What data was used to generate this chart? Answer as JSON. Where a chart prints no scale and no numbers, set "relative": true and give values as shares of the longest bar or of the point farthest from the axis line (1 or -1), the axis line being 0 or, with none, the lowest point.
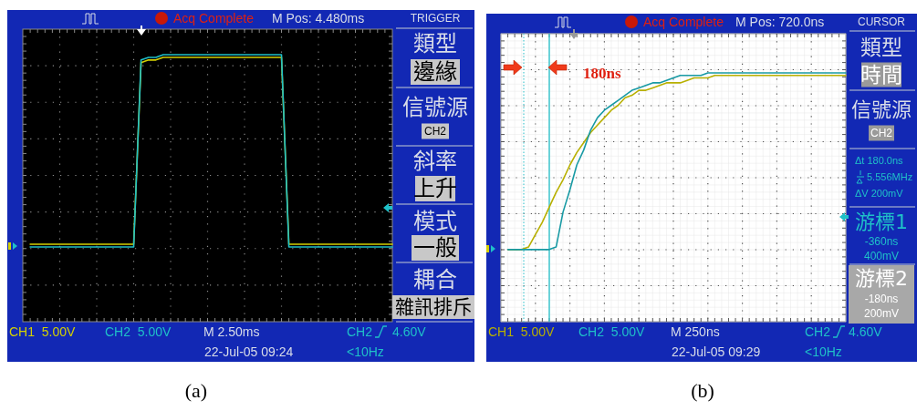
{
  "chart_data": [
    {
      "type": "line",
      "title": "(a)",
      "relative": true,
      "grid": true,
      "categories": [
        null,
        null,
        null,
        null,
        null,
        null,
        null,
        null,
        null,
        null,
        null,
        null,
        null,
        null,
        null,
        null,
        null,
        null,
        null,
        null,
        null,
        null,
        null,
        null,
        null,
        null,
        null,
        null,
        null,
        null,
        null,
        null,
        null,
        null,
        null,
        null,
        null,
        null,
        null,
        null,
        null,
        null,
        null,
        null,
        null,
        null,
        null,
        null,
        null,
        null,
        null
      ],
      "series": [
        {
          "color": "#d4d000",
          "values": [
            null,
            0.29,
            0.29,
            0.29,
            0.29,
            0.29,
            0.29,
            0.29,
            0.29,
            0.29,
            0.29,
            0.29,
            0.29,
            0.29,
            0.29,
            0.29,
            0.97,
            0.98,
            0.98,
            0.99,
            0.99,
            0.99,
            0.99,
            0.99,
            0.99,
            0.99,
            0.99,
            0.99,
            0.99,
            0.99,
            0.99,
            0.99,
            0.99,
            0.99,
            0.99,
            0.99,
            0.29,
            0.29,
            0.29,
            0.29,
            0.29,
            0.29,
            0.29,
            0.29,
            0.29,
            0.29,
            0.29,
            0.29,
            0.29,
            0.29,
            0.29
          ]
        },
        {
          "color": "#1fc0c8",
          "values": [
            null,
            0.28,
            0.28,
            0.28,
            0.28,
            0.28,
            0.28,
            0.28,
            0.28,
            0.28,
            0.28,
            0.28,
            0.28,
            0.28,
            0.28,
            0.28,
            0.98,
            0.99,
            0.99,
            1,
            1,
            1,
            1,
            1,
            1,
            1,
            1,
            1,
            1,
            1,
            1,
            1,
            1,
            1,
            1,
            1,
            0.28,
            0.28,
            0.28,
            0.28,
            0.28,
            0.28,
            0.28,
            0.28,
            0.28,
            0.28,
            0.28,
            0.28,
            0.28,
            0.28,
            0.28
          ]
        }
      ],
      "annotations": [
        "Acq Complete",
        "M Pos: 4.480ms",
        "TRIGGER",
        "類型",
        "邊緣",
        "信號源",
        "CH2",
        "斜率",
        "上升",
        "模式",
        "一般",
        "耦合",
        "雜訊排斥",
        "CH1  5.00V",
        "CH2  5.00V",
        "M 2.50ms",
        "CH2",
        "4.60V",
        "22-Jul-05 09:24",
        "<10Hz"
      ]
    },
    {
      "type": "line",
      "title": "(b)",
      "relative": true,
      "grid": true,
      "categories": [
        null,
        null,
        null,
        null,
        null,
        null,
        null,
        null,
        null,
        null,
        null,
        null,
        null,
        null,
        null,
        null,
        null,
        null,
        null,
        null,
        null,
        null,
        null,
        null,
        null,
        null,
        null,
        null,
        null,
        null,
        null,
        null,
        null,
        null,
        null,
        null,
        null,
        null,
        null,
        null,
        null,
        null,
        null,
        null,
        null,
        null,
        null,
        null,
        null,
        null,
        null
      ],
      "series": [
        {
          "color": "#b8b000",
          "values": [
            null,
            0.29,
            0.29,
            0.29,
            0.3,
            0.35,
            0.4,
            0.46,
            0.52,
            0.57,
            0.63,
            0.68,
            0.72,
            0.76,
            0.79,
            0.82,
            0.85,
            0.87,
            0.9,
            0.91,
            0.93,
            0.93,
            0.94,
            0.95,
            0.96,
            0.96,
            0.96,
            0.97,
            0.98,
            0.98,
            0.98,
            0.99,
            0.99,
            0.99,
            0.99,
            0.99,
            0.99,
            0.99,
            0.99,
            0.99,
            0.99,
            0.99,
            0.99,
            0.99,
            0.99,
            0.99,
            0.99,
            0.99,
            0.99,
            0.99,
            0.99
          ]
        },
        {
          "color": "#189aa4",
          "values": [
            null,
            0.29,
            0.29,
            0.29,
            0.29,
            0.29,
            0.29,
            0.29,
            0.3,
            0.44,
            0.53,
            0.63,
            0.69,
            0.77,
            0.82,
            0.85,
            0.87,
            0.89,
            0.91,
            0.93,
            0.94,
            0.95,
            0.96,
            0.96,
            0.97,
            0.98,
            0.99,
            0.99,
            0.99,
            0.99,
            1,
            1,
            1,
            1,
            1,
            1,
            1,
            1,
            1,
            1,
            1,
            1,
            1,
            1,
            1,
            1,
            1,
            1,
            1,
            1,
            1
          ]
        }
      ],
      "annotations": [
        "Acq Complete",
        "M Pos: 720.0ns",
        "CURSOR",
        "類型",
        "時間",
        "信號源",
        "CH2",
        "Δt 180.0ns",
        "5.556MHz",
        "ΔV 200mV",
        "游標1",
        "-360ns",
        "400mV",
        "游標2",
        "-180ns",
        "200mV",
        "CH1  5.00V",
        "CH2  5.00V",
        "M 250ns",
        "CH2",
        "4.60V",
        "22-Jul-05 09:29",
        "<10Hz",
        "180ns"
      ]
    }
  ]
}
